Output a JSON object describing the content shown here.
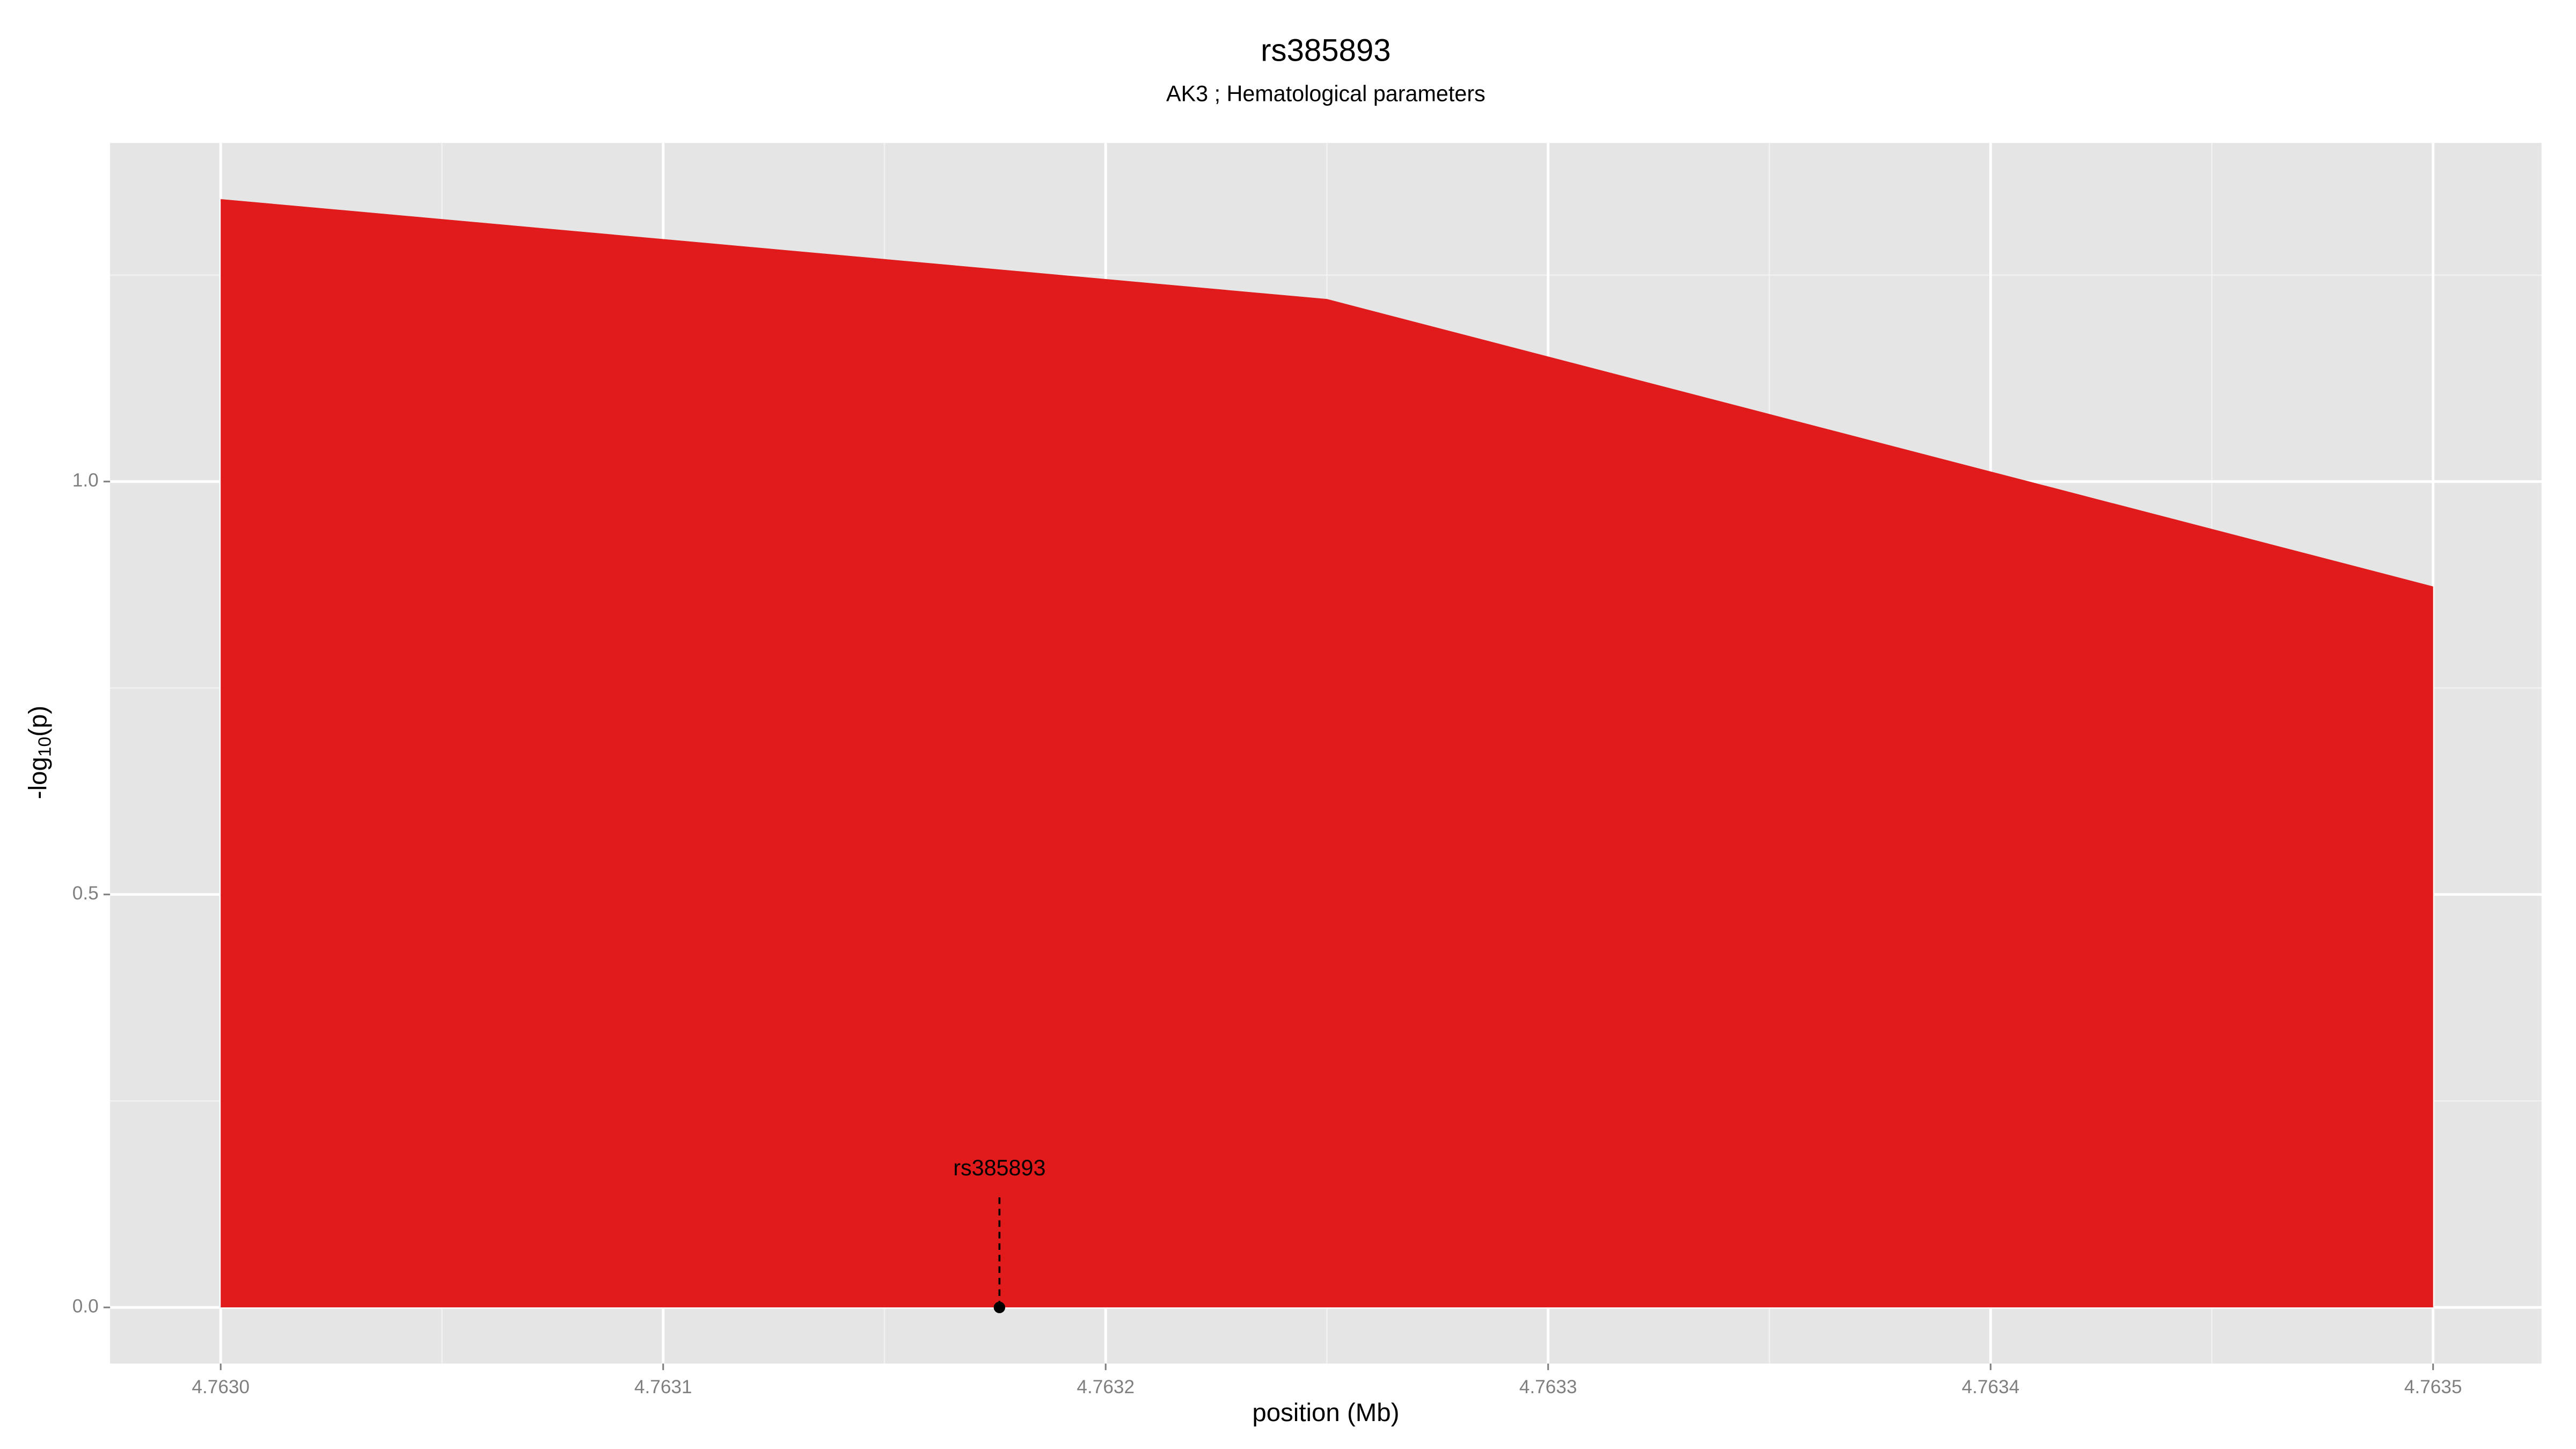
{
  "chart_data": {
    "type": "area",
    "title": "rs385893",
    "subtitle": "AK3 ; Hematological parameters",
    "x_label": "position (Mb)",
    "y_label": {
      "prefix": "-log",
      "sub": "10",
      "suffix": "(p)"
    },
    "x": [
      4.763,
      4.76325,
      4.7635
    ],
    "y": [
      1.342,
      1.221,
      0.873
    ],
    "color": "#e11b1c",
    "xlim": [
      4.762975,
      4.7635245
    ],
    "ylim": [
      -0.068,
      1.41
    ],
    "xticks": [
      {
        "value": 4.763,
        "label": "4.7630"
      },
      {
        "value": 4.7631,
        "label": "4.7631"
      },
      {
        "value": 4.7632,
        "label": "4.7632"
      },
      {
        "value": 4.7633,
        "label": "4.7633"
      },
      {
        "value": 4.7634,
        "label": "4.7634"
      },
      {
        "value": 4.7635,
        "label": "4.7635"
      }
    ],
    "yticks": [
      {
        "value": 0,
        "label": "0.0"
      },
      {
        "value": 0.5,
        "label": "0.5"
      },
      {
        "value": 1,
        "label": "1.0"
      }
    ],
    "grid": true,
    "annotations": [
      {
        "text": "rs385893",
        "x": 4.763176,
        "y": 0
      }
    ]
  }
}
